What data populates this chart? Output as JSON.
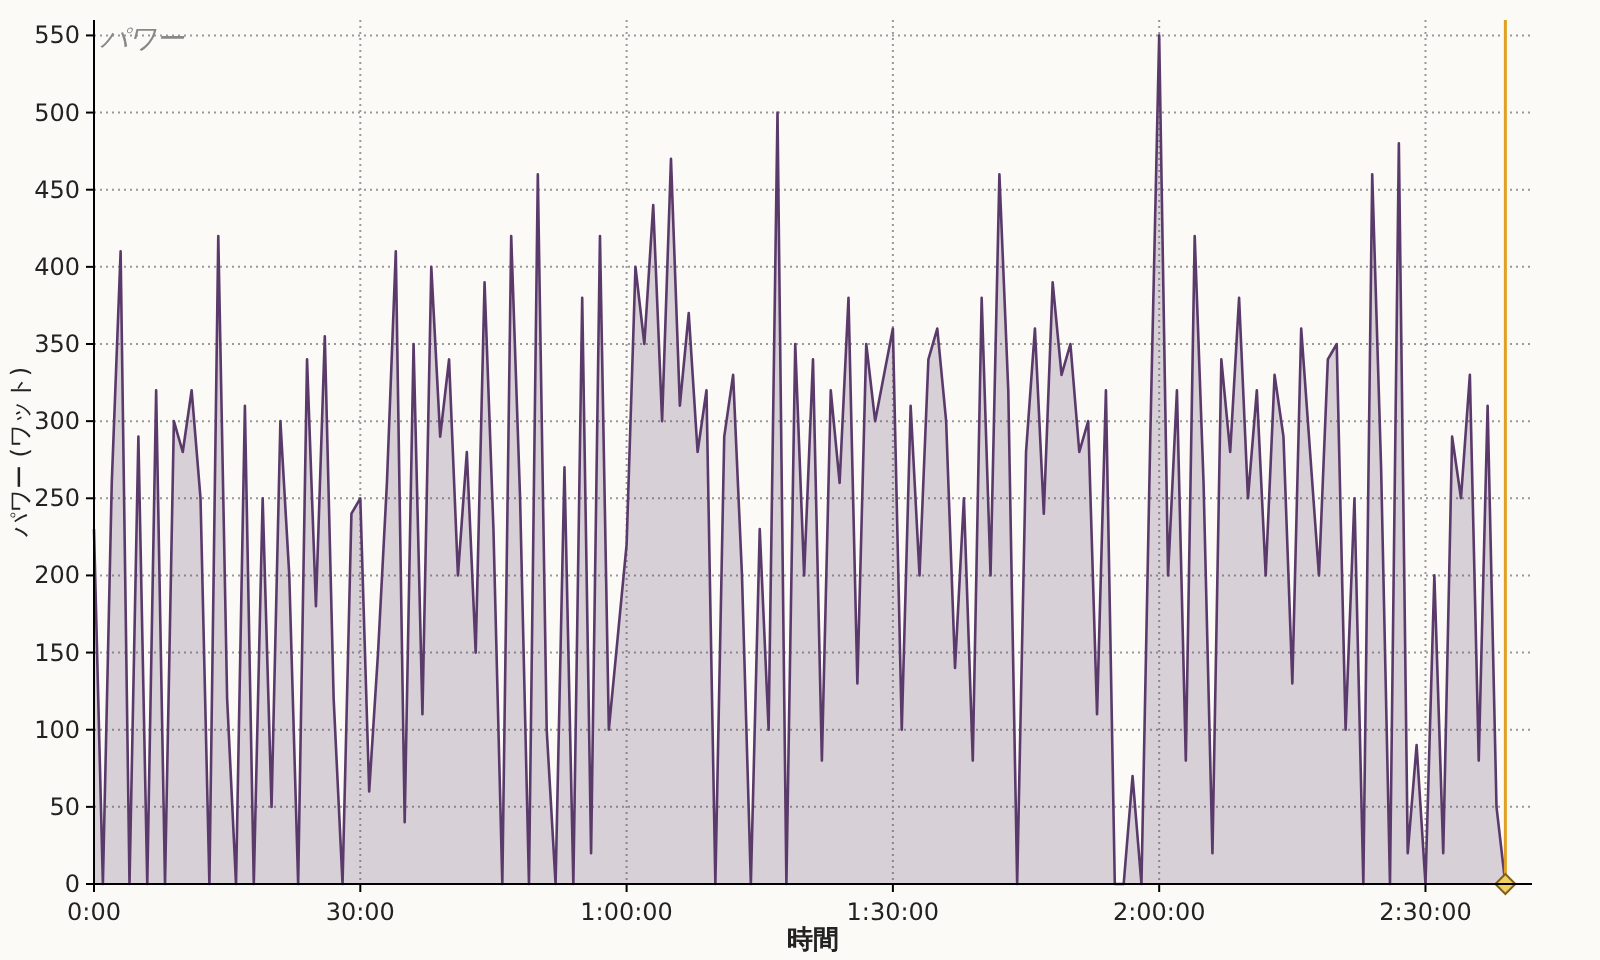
{
  "chart_data": {
    "type": "area",
    "title": "パワー",
    "xlabel": "時間",
    "ylabel": "パワー (ワット)",
    "x": [
      0,
      1,
      2,
      3,
      4,
      5,
      6,
      7,
      8,
      9,
      10,
      11,
      12,
      13,
      14,
      15,
      16,
      17,
      18,
      19,
      20,
      21,
      22,
      23,
      24,
      25,
      26,
      27,
      28,
      29,
      30,
      31,
      32,
      33,
      34,
      35,
      36,
      37,
      38,
      39,
      40,
      41,
      42,
      43,
      44,
      45,
      46,
      47,
      48,
      49,
      50,
      51,
      52,
      53,
      54,
      55,
      56,
      57,
      58,
      59,
      60,
      61,
      62,
      63,
      64,
      65,
      66,
      67,
      68,
      69,
      70,
      71,
      72,
      73,
      74,
      75,
      76,
      77,
      78,
      79,
      80,
      81,
      82,
      83,
      84,
      85,
      86,
      87,
      88,
      89,
      90,
      91,
      92,
      93,
      94,
      95,
      96,
      97,
      98,
      99,
      100,
      101,
      102,
      103,
      104,
      105,
      106,
      107,
      108,
      109,
      110,
      111,
      112,
      113,
      114,
      115,
      116,
      117,
      118,
      119,
      120,
      121,
      122,
      123,
      124,
      125,
      126,
      127,
      128,
      129,
      130,
      131,
      132,
      133,
      134,
      135,
      136,
      137,
      138,
      139,
      140,
      141,
      142,
      143,
      144,
      145,
      146,
      147,
      148,
      149,
      150,
      151,
      152,
      153,
      154,
      155,
      156,
      157,
      158,
      159
    ],
    "series": [
      {
        "color": "#5a3a6a",
        "values": [
          230,
          0,
          260,
          410,
          0,
          290,
          0,
          320,
          0,
          300,
          280,
          320,
          250,
          0,
          420,
          120,
          0,
          310,
          0,
          250,
          50,
          300,
          200,
          0,
          340,
          180,
          355,
          120,
          0,
          240,
          250,
          60,
          150,
          260,
          410,
          40,
          350,
          110,
          400,
          290,
          340,
          200,
          280,
          150,
          390,
          230,
          0,
          420,
          250,
          0,
          460,
          100,
          0,
          270,
          0,
          380,
          20,
          420,
          100,
          160,
          220,
          400,
          350,
          440,
          300,
          470,
          310,
          370,
          280,
          320,
          0,
          290,
          330,
          200,
          0,
          230,
          100,
          500,
          0,
          350,
          200,
          340,
          80,
          320,
          260,
          380,
          130,
          350,
          300,
          330,
          360,
          100,
          310,
          200,
          340,
          360,
          300,
          140,
          250,
          80,
          380,
          200,
          460,
          320,
          0,
          280,
          360,
          240,
          390,
          330,
          350,
          280,
          300,
          110,
          320,
          0,
          0,
          70,
          0,
          290,
          550,
          200,
          320,
          80,
          420,
          260,
          20,
          340,
          280,
          380,
          250,
          320,
          200,
          330,
          290,
          130,
          360,
          280,
          200,
          340,
          350,
          100,
          250,
          0,
          460,
          270,
          0,
          480,
          20,
          90,
          0,
          200,
          20,
          290,
          250,
          330,
          80,
          310,
          50,
          0
        ]
      }
    ],
    "xlim": [
      0,
      162
    ],
    "ylim": [
      0,
      560
    ],
    "xticks": [
      {
        "value": 0,
        "label": "0:00"
      },
      {
        "value": 30,
        "label": "30:00"
      },
      {
        "value": 60,
        "label": "1:00:00"
      },
      {
        "value": 90,
        "label": "1:30:00"
      },
      {
        "value": 120,
        "label": "2:00:00"
      },
      {
        "value": 150,
        "label": "2:30:00"
      }
    ],
    "yticks": [
      0,
      50,
      100,
      150,
      200,
      250,
      300,
      350,
      400,
      450,
      500,
      550
    ],
    "ref_lines": [
      {
        "axis": "x",
        "value": 159,
        "color": "#e0a020"
      }
    ],
    "grid": true
  }
}
